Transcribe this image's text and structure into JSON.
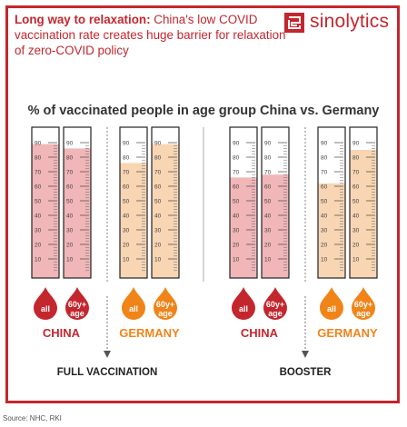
{
  "header": {
    "headline_bold": "Long way to relaxation:",
    "headline_rest": " China's low COVID vaccination rate creates huge barrier for relaxation of zero-COVID policy",
    "logo_text": "sinolytics",
    "brand_color": "#c4262e"
  },
  "source": "Source: NHC, RKI",
  "colors": {
    "china_fill": "#f0b6b8",
    "germany_fill": "#f8d5b3",
    "china_drop": "#c4262e",
    "germany_drop": "#f08419"
  },
  "chart_data": {
    "type": "bar",
    "title": "% of vaccinated people in age group China vs. Germany",
    "ylim": [
      0,
      100
    ],
    "ticks": [
      "10",
      "20",
      "30",
      "40",
      "50",
      "60",
      "70",
      "80",
      "90"
    ],
    "groups": [
      {
        "label": "FULL VACCINATION",
        "countries": [
          {
            "name": "CHINA",
            "bars": [
              {
                "label": "all",
                "value": 89
              },
              {
                "label": "60y+ age",
                "value": 86
              }
            ]
          },
          {
            "name": "GERMANY",
            "bars": [
              {
                "label": "all",
                "value": 76
              },
              {
                "label": "60y+ age",
                "value": 89
              }
            ]
          }
        ]
      },
      {
        "label": "BOOSTER",
        "countries": [
          {
            "name": "CHINA",
            "bars": [
              {
                "label": "all",
                "value": 66
              },
              {
                "label": "60y+ age",
                "value": 68
              }
            ]
          },
          {
            "name": "GERMANY",
            "bars": [
              {
                "label": "all",
                "value": 62
              },
              {
                "label": "60y+ age",
                "value": 85
              }
            ]
          }
        ]
      }
    ]
  }
}
